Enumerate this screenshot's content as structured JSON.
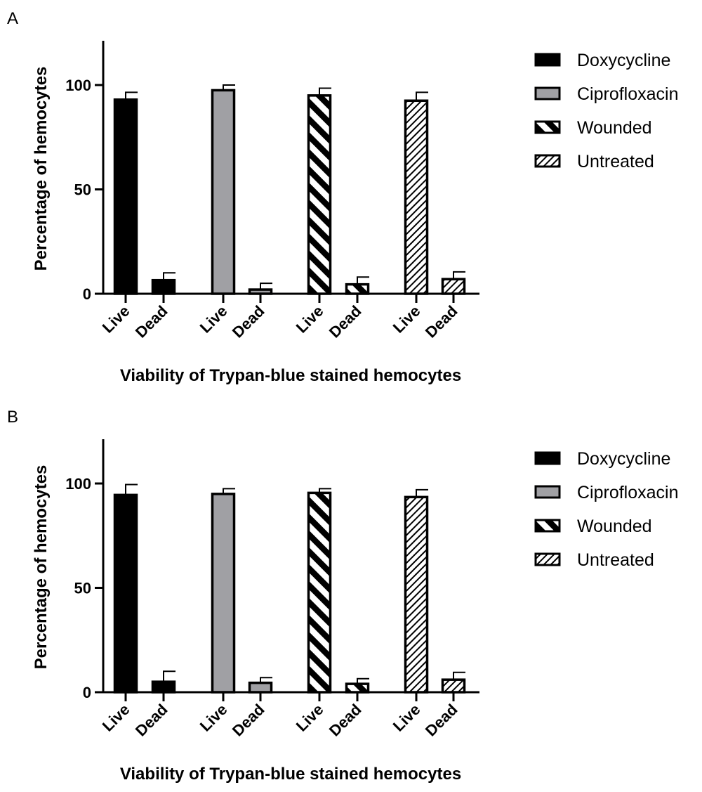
{
  "chart_data": [
    {
      "panel": "A",
      "type": "bar",
      "title": "",
      "xlabel": "Viability of Trypan-blue stained hemocytes",
      "ylabel": "Percentage of hemocytes",
      "ylim": [
        0,
        120
      ],
      "yticks": [
        0,
        50,
        100
      ],
      "categories": [
        "Live",
        "Dead"
      ],
      "series": [
        {
          "name": "Doxycycline",
          "fill": "solid-black",
          "values": [
            93,
            6.5
          ],
          "errors": [
            3.5,
            3.5
          ]
        },
        {
          "name": "Ciprofloxacin",
          "fill": "solid-gray",
          "values": [
            97.5,
            2
          ],
          "errors": [
            2.5,
            3
          ]
        },
        {
          "name": "Wounded",
          "fill": "wide-hatch",
          "values": [
            95,
            4.5
          ],
          "errors": [
            3.5,
            3.5
          ]
        },
        {
          "name": "Untreated",
          "fill": "fine-hatch",
          "values": [
            92.5,
            7
          ],
          "errors": [
            4,
            3.5
          ]
        }
      ],
      "legend": "right"
    },
    {
      "panel": "B",
      "type": "bar",
      "title": "",
      "xlabel": "Viability of Trypan-blue stained hemocytes",
      "ylabel": "Percentage of hemocytes",
      "ylim": [
        0,
        120
      ],
      "yticks": [
        0,
        50,
        100
      ],
      "categories": [
        "Live",
        "Dead"
      ],
      "series": [
        {
          "name": "Doxycycline",
          "fill": "solid-black",
          "values": [
            94.5,
            5
          ],
          "errors": [
            5,
            5
          ]
        },
        {
          "name": "Ciprofloxacin",
          "fill": "solid-gray",
          "values": [
            95,
            4.5
          ],
          "errors": [
            2.5,
            2.5
          ]
        },
        {
          "name": "Wounded",
          "fill": "wide-hatch",
          "values": [
            95.5,
            4
          ],
          "errors": [
            2,
            2.5
          ]
        },
        {
          "name": "Untreated",
          "fill": "fine-hatch",
          "values": [
            93.5,
            6
          ],
          "errors": [
            3.5,
            3.5
          ]
        }
      ],
      "legend": "right"
    }
  ],
  "colors": {
    "axis": "#000000",
    "gray_fill": "#a0a0a4",
    "hatch_bg": "#ffffff"
  }
}
